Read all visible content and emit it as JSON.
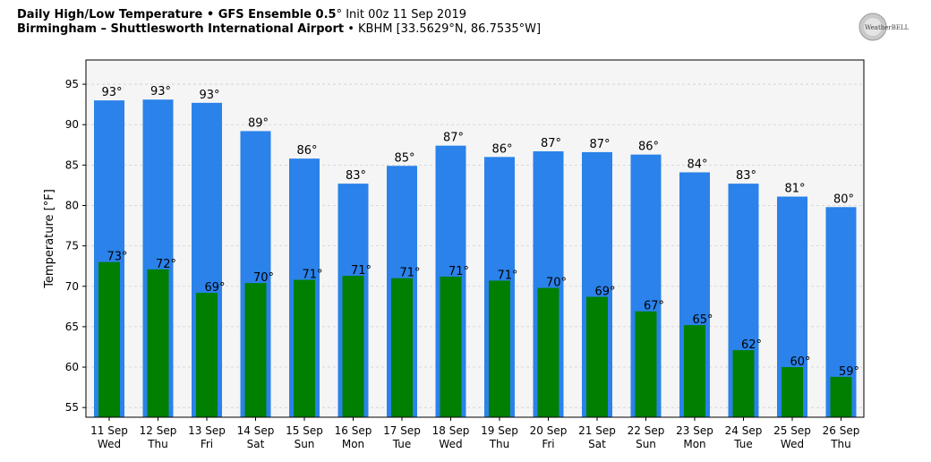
{
  "header": {
    "title_bold": "Daily High/Low Temperature • GFS Ensemble 0.5",
    "title_degree": "°",
    "title_init": " Init 00z 11 Sep 2019",
    "location_bold": "Birmingham – Shuttlesworth International Airport",
    "location_detail": " • KBHM [33.5629°N, 86.7535°W]"
  },
  "logo": {
    "text": "WeatherBELL",
    "icon": "weatherbell-logo"
  },
  "colors": {
    "high": "#2a82ea",
    "low": "#007f00",
    "plot_bg": "#f5f5f5",
    "grid": "#d0d0d0"
  },
  "chart_data": {
    "type": "bar",
    "ylabel": "Temperature [°F]",
    "ylim": [
      53.8,
      98
    ],
    "yticks": [
      55,
      60,
      65,
      70,
      75,
      80,
      85,
      90,
      95
    ],
    "grid": true,
    "categories": [
      {
        "date": "11 Sep",
        "day": "Wed"
      },
      {
        "date": "12 Sep",
        "day": "Thu"
      },
      {
        "date": "13 Sep",
        "day": "Fri"
      },
      {
        "date": "14 Sep",
        "day": "Sat"
      },
      {
        "date": "15 Sep",
        "day": "Sun"
      },
      {
        "date": "16 Sep",
        "day": "Mon"
      },
      {
        "date": "17 Sep",
        "day": "Tue"
      },
      {
        "date": "18 Sep",
        "day": "Wed"
      },
      {
        "date": "19 Sep",
        "day": "Thu"
      },
      {
        "date": "20 Sep",
        "day": "Fri"
      },
      {
        "date": "21 Sep",
        "day": "Sat"
      },
      {
        "date": "22 Sep",
        "day": "Sun"
      },
      {
        "date": "23 Sep",
        "day": "Mon"
      },
      {
        "date": "24 Sep",
        "day": "Tue"
      },
      {
        "date": "25 Sep",
        "day": "Wed"
      },
      {
        "date": "26 Sep",
        "day": "Thu"
      }
    ],
    "series": [
      {
        "key": "high",
        "values": [
          93.0,
          93.1,
          92.7,
          89.2,
          85.8,
          82.7,
          84.9,
          87.4,
          86.0,
          86.7,
          86.6,
          86.3,
          84.1,
          82.7,
          81.1,
          79.8
        ],
        "labels": [
          "93°",
          "93°",
          "93°",
          "89°",
          "86°",
          "83°",
          "85°",
          "87°",
          "86°",
          "87°",
          "87°",
          "86°",
          "84°",
          "83°",
          "81°",
          "80°"
        ]
      },
      {
        "key": "low",
        "values": [
          73.0,
          72.1,
          69.2,
          70.4,
          70.8,
          71.3,
          71.0,
          71.2,
          70.7,
          69.8,
          68.7,
          66.9,
          65.2,
          62.1,
          60.0,
          58.8
        ],
        "labels": [
          "73°",
          "72°",
          "69°",
          "70°",
          "71°",
          "71°",
          "71°",
          "71°",
          "71°",
          "70°",
          "69°",
          "67°",
          "65°",
          "62°",
          "60°",
          "59°"
        ]
      }
    ]
  }
}
